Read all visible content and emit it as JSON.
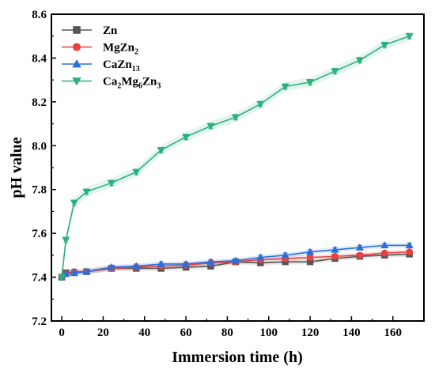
{
  "chart_data": {
    "type": "line",
    "xlabel": "Immersion time (h)",
    "ylabel": "pH value",
    "xlim": [
      -5,
      175
    ],
    "ylim": [
      7.2,
      8.6
    ],
    "xticks": [
      "0",
      "20",
      "40",
      "60",
      "80",
      "100",
      "120",
      "140",
      "160"
    ],
    "yticks": [
      "7.2",
      "7.4",
      "7.6",
      "7.8",
      "8.0",
      "8.2",
      "8.4",
      "8.6"
    ],
    "legend_position": "top-left",
    "series": [
      {
        "name": "Zn",
        "legend_parts": [
          [
            "Zn",
            ""
          ]
        ],
        "color": "#555555",
        "marker": "square",
        "x": [
          0,
          2,
          6,
          12,
          24,
          36,
          48,
          60,
          72,
          84,
          96,
          108,
          120,
          132,
          144,
          156,
          168
        ],
        "y": [
          7.4,
          7.42,
          7.42,
          7.425,
          7.44,
          7.44,
          7.44,
          7.445,
          7.45,
          7.47,
          7.465,
          7.47,
          7.47,
          7.485,
          7.495,
          7.5,
          7.505
        ]
      },
      {
        "name": "MgZn2",
        "legend_parts": [
          [
            "MgZn",
            ""
          ],
          [
            "2",
            "sub"
          ]
        ],
        "color": "#e8403f",
        "marker": "circle",
        "x": [
          0,
          2,
          6,
          12,
          24,
          36,
          48,
          60,
          72,
          84,
          96,
          108,
          120,
          132,
          144,
          156,
          168
        ],
        "y": [
          7.4,
          7.415,
          7.425,
          7.425,
          7.44,
          7.445,
          7.45,
          7.455,
          7.465,
          7.47,
          7.48,
          7.485,
          7.49,
          7.495,
          7.5,
          7.51,
          7.515
        ]
      },
      {
        "name": "CaZn13",
        "legend_parts": [
          [
            "CaZn",
            ""
          ],
          [
            "13",
            "sub"
          ]
        ],
        "color": "#2a6fdb",
        "marker": "triangle-up",
        "x": [
          0,
          2,
          6,
          12,
          24,
          36,
          48,
          60,
          72,
          84,
          96,
          108,
          120,
          132,
          144,
          156,
          168
        ],
        "y": [
          7.4,
          7.415,
          7.42,
          7.425,
          7.445,
          7.45,
          7.46,
          7.46,
          7.47,
          7.475,
          7.49,
          7.5,
          7.515,
          7.525,
          7.535,
          7.545,
          7.545
        ]
      },
      {
        "name": "Ca2Mg6Zn3",
        "legend_parts": [
          [
            "Ca",
            ""
          ],
          [
            "2",
            "sub"
          ],
          [
            "Mg",
            ""
          ],
          [
            "6",
            "sub"
          ],
          [
            "Zn",
            ""
          ],
          [
            "3",
            "sub"
          ]
        ],
        "color": "#2bb07f",
        "marker": "triangle-down",
        "x": [
          0,
          2,
          6,
          12,
          24,
          36,
          48,
          60,
          72,
          84,
          96,
          108,
          120,
          132,
          144,
          156,
          168
        ],
        "y": [
          7.4,
          7.57,
          7.74,
          7.79,
          7.83,
          7.88,
          7.98,
          8.04,
          8.09,
          8.13,
          8.19,
          8.27,
          8.29,
          8.34,
          8.39,
          8.46,
          8.5
        ]
      }
    ]
  }
}
